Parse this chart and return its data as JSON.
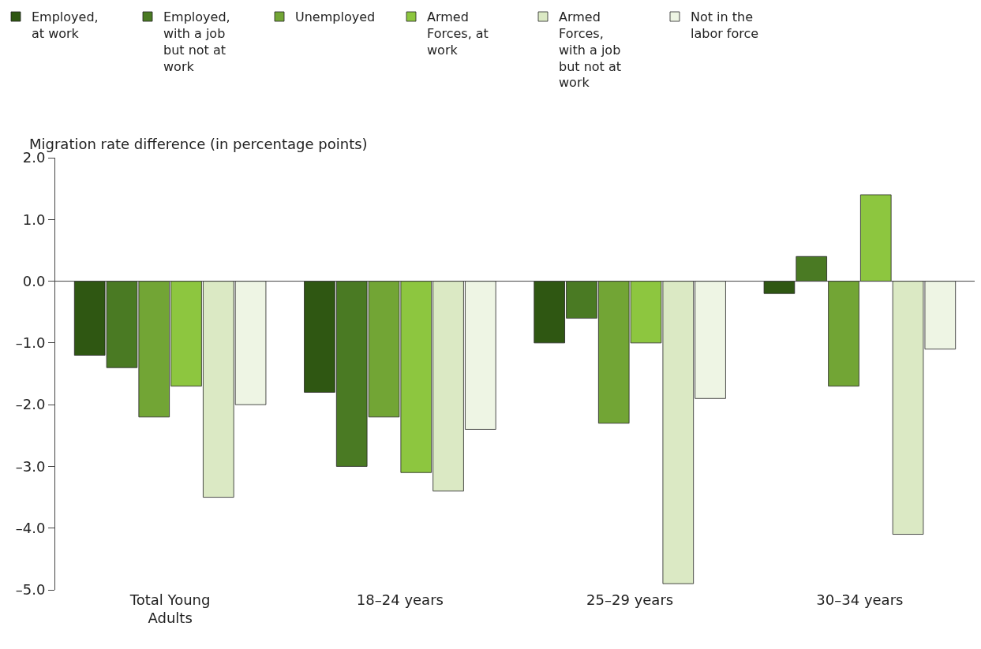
{
  "chart_data": {
    "type": "bar",
    "ylabel": "Migration rate difference (in percentage points)",
    "categories": [
      "Total Young Adults",
      "18–24 years",
      "25–29 years",
      "30–34 years"
    ],
    "series": [
      {
        "name": "Employed, at work",
        "color": "#2f5712",
        "values": [
          -1.2,
          -1.8,
          -1.0,
          -0.2
        ]
      },
      {
        "name": "Employed, with a job but not at work",
        "color": "#4a7a23",
        "values": [
          -1.4,
          -3.0,
          -0.6,
          0.4
        ]
      },
      {
        "name": "Unemployed",
        "color": "#72a535",
        "values": [
          -2.2,
          -2.2,
          -2.3,
          -1.7
        ]
      },
      {
        "name": "Armed Forces, at work",
        "color": "#8dc63f",
        "values": [
          -1.7,
          -3.1,
          -1.0,
          1.4
        ]
      },
      {
        "name": "Armed Forces, with a job but not at work",
        "color": "#dbe9c4",
        "values": [
          -3.5,
          -3.4,
          -4.9,
          -4.1
        ]
      },
      {
        "name": "Not in the labor force",
        "color": "#eef5e4",
        "values": [
          -2.0,
          -2.4,
          -1.9,
          -1.1
        ]
      }
    ],
    "ylim": [
      -5.0,
      2.0
    ],
    "yticks": [
      {
        "value": 2,
        "label": "2.0"
      },
      {
        "value": 1,
        "label": "1.0"
      },
      {
        "value": 0,
        "label": "0.0"
      },
      {
        "value": -1,
        "label": "–1.0"
      },
      {
        "value": -2,
        "label": "–2.0"
      },
      {
        "value": -3,
        "label": "–3.0"
      },
      {
        "value": -4,
        "label": "–4.0"
      },
      {
        "value": -5,
        "label": "–5.0"
      }
    ],
    "ref_lines": [
      {
        "axis": "y",
        "value": 0,
        "color": "#444444"
      }
    ],
    "legend": "top"
  }
}
